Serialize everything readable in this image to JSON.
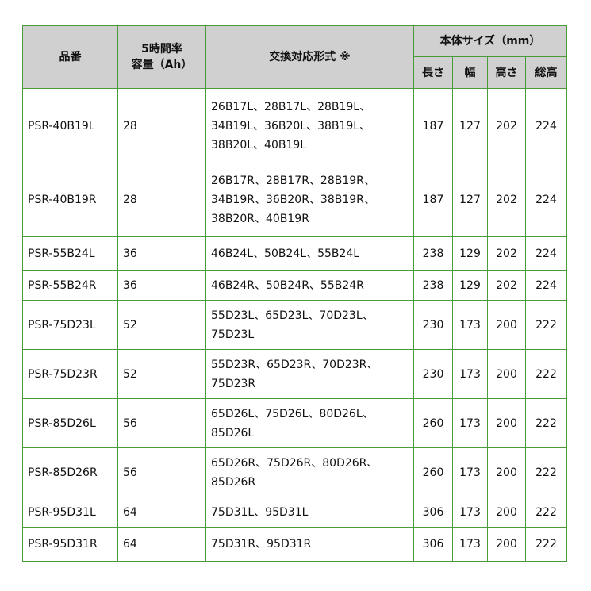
{
  "header": {
    "part": "品番",
    "capacity": "5時間率\n容量（Ah）",
    "compat": "交換対応形式 ※",
    "size": "本体サイズ（mm）",
    "length": "長さ",
    "width": "幅",
    "height": "高さ",
    "total_height": "総高"
  },
  "colors": {
    "border": "#4a9a3a",
    "header_bg": "#d0d0d0"
  },
  "rows": [
    {
      "part": "PSR-40B19L",
      "cap": "28",
      "compat": "26B17L、28B17L、28B19L、\n34B19L、36B20L、38B19L、\n38B20L、40B19L",
      "l": "187",
      "w": "127",
      "h": "202",
      "t": "224"
    },
    {
      "part": "PSR-40B19R",
      "cap": "28",
      "compat": "26B17R、28B17R、28B19R、\n34B19R、36B20R、38B19R、\n38B20R、40B19R",
      "l": "187",
      "w": "127",
      "h": "202",
      "t": "224"
    },
    {
      "part": "PSR-55B24L",
      "cap": "36",
      "compat": "46B24L、50B24L、55B24L",
      "l": "238",
      "w": "129",
      "h": "202",
      "t": "224"
    },
    {
      "part": "PSR-55B24R",
      "cap": "36",
      "compat": "46B24R、50B24R、55B24R",
      "l": "238",
      "w": "129",
      "h": "202",
      "t": "224"
    },
    {
      "part": "PSR-75D23L",
      "cap": "52",
      "compat": "55D23L、65D23L、70D23L、\n75D23L",
      "l": "230",
      "w": "173",
      "h": "200",
      "t": "222"
    },
    {
      "part": "PSR-75D23R",
      "cap": "52",
      "compat": "55D23R、65D23R、70D23R、\n75D23R",
      "l": "230",
      "w": "173",
      "h": "200",
      "t": "222"
    },
    {
      "part": "PSR-85D26L",
      "cap": "56",
      "compat": "65D26L、75D26L、80D26L、\n85D26L",
      "l": "260",
      "w": "173",
      "h": "200",
      "t": "222"
    },
    {
      "part": "PSR-85D26R",
      "cap": "56",
      "compat": "65D26R、75D26R、80D26R、\n85D26R",
      "l": "260",
      "w": "173",
      "h": "200",
      "t": "222"
    },
    {
      "part": "PSR-95D31L",
      "cap": "64",
      "compat": "75D31L、95D31L",
      "l": "306",
      "w": "173",
      "h": "200",
      "t": "222"
    },
    {
      "part": "PSR-95D31R",
      "cap": "64",
      "compat": "75D31R、95D31R",
      "l": "306",
      "w": "173",
      "h": "200",
      "t": "222"
    }
  ]
}
